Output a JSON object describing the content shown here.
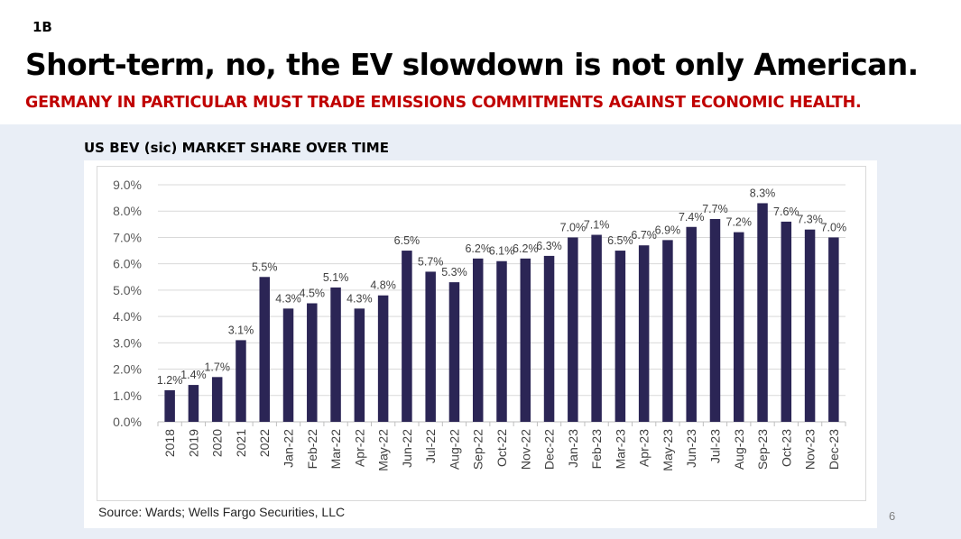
{
  "slide": {
    "tag": "1B",
    "title": "Short-term, no, the EV slowdown is not only American.",
    "subtitle": "GERMANY IN PARTICULAR MUST TRADE EMISSIONS COMMITMENTS AGAINST ECONOMIC HEALTH.",
    "chart_heading": "US BEV (sic) MARKET SHARE OVER TIME",
    "source": "Source: Wards; Wells Fargo Securities, LLC",
    "page_number": "6"
  },
  "colors": {
    "title": "#000000",
    "subtitle": "#c00000",
    "panel_background": "#e9eef6",
    "bar": "#2b2555"
  },
  "chart_data": {
    "type": "bar",
    "title": "",
    "xlabel": "",
    "ylabel": "",
    "categories": [
      "2018",
      "2019",
      "2020",
      "2021",
      "2022",
      "Jan-22",
      "Feb-22",
      "Mar-22",
      "Apr-22",
      "May-22",
      "Jun-22",
      "Jul-22",
      "Aug-22",
      "Sep-22",
      "Oct-22",
      "Nov-22",
      "Dec-22",
      "Jan-23",
      "Feb-23",
      "Mar-23",
      "Apr-23",
      "May-23",
      "Jun-23",
      "Jul-23",
      "Aug-23",
      "Sep-23",
      "Oct-23",
      "Nov-23",
      "Dec-23"
    ],
    "values": [
      1.2,
      1.4,
      1.7,
      3.1,
      5.5,
      4.3,
      4.5,
      5.1,
      4.3,
      4.8,
      6.5,
      5.7,
      5.3,
      6.2,
      6.1,
      6.2,
      6.3,
      7.0,
      7.1,
      6.5,
      6.7,
      6.9,
      7.4,
      7.7,
      7.2,
      8.3,
      7.6,
      7.3,
      7.0
    ],
    "data_labels": [
      "1.2%",
      "1.4%",
      "1.7%",
      "3.1%",
      "5.5%",
      "4.3%",
      "4.5%",
      "5.1%",
      "4.3%",
      "4.8%",
      "6.5%",
      "5.7%",
      "5.3%",
      "6.2%",
      "6.1%",
      "6.2%",
      "6.3%",
      "7.0%",
      "7.1%",
      "6.5%",
      "6.7%",
      "6.9%",
      "7.4%",
      "7.7%",
      "7.2%",
      "8.3%",
      "7.6%",
      "7.3%",
      "7.0%"
    ],
    "y_ticks": [
      "0.0%",
      "1.0%",
      "2.0%",
      "3.0%",
      "4.0%",
      "5.0%",
      "6.0%",
      "7.0%",
      "8.0%",
      "9.0%"
    ],
    "ylim": [
      0,
      9
    ],
    "grid": true,
    "legend": "none",
    "unit": "%"
  }
}
